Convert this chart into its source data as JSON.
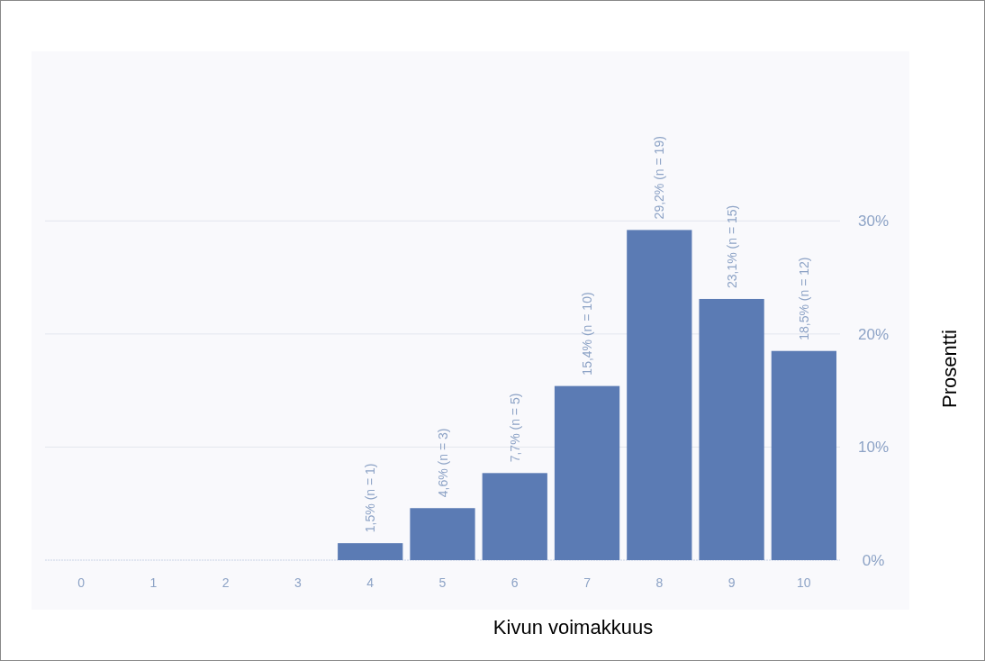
{
  "chart_data": {
    "type": "bar",
    "xlabel": "Kivun voimakkuus",
    "ylabel": "Prosentti",
    "categories": [
      "0",
      "1",
      "2",
      "3",
      "4",
      "5",
      "6",
      "7",
      "8",
      "9",
      "10"
    ],
    "values": [
      0,
      0,
      0,
      0,
      1.5,
      4.6,
      7.7,
      15.4,
      29.2,
      23.1,
      18.5
    ],
    "value_labels": [
      null,
      null,
      null,
      null,
      "1,5% (n = 1)",
      "4,6% (n = 3)",
      "7,7% (n = 5)",
      "15,4% (n = 10)",
      "29,2% (n = 19)",
      "23,1% (n = 15)",
      "18,5% (n = 12)"
    ],
    "color": "#5b7bb4",
    "ylim": [
      0,
      45
    ],
    "yticks": [
      {
        "value": 0,
        "label": "0%"
      },
      {
        "value": 10,
        "label": "10%"
      },
      {
        "value": 20,
        "label": "20%"
      },
      {
        "value": 30,
        "label": "30%"
      }
    ],
    "grid": "y"
  }
}
